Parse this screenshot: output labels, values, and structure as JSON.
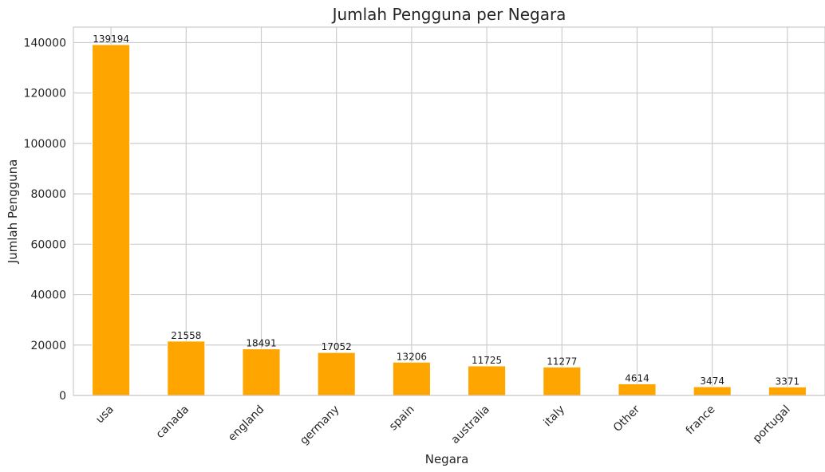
{
  "chart_data": {
    "type": "bar",
    "title": "Jumlah Pengguna per Negara",
    "xlabel": "Negara",
    "ylabel": "Jumlah Pengguna",
    "categories": [
      "usa",
      "canada",
      "england",
      "germany",
      "spain",
      "australia",
      "italy",
      "Other",
      "france",
      "portugal"
    ],
    "values": [
      139194,
      21558,
      18491,
      17052,
      13206,
      11725,
      11277,
      4614,
      3474,
      3371
    ],
    "data_labels": [
      "139194",
      "21558",
      "18491",
      "17052",
      "13206",
      "11725",
      "11277",
      "4614",
      "3474",
      "3371"
    ],
    "ylim": [
      0,
      146153
    ],
    "yticks": [
      0,
      20000,
      40000,
      60000,
      80000,
      100000,
      120000,
      140000
    ],
    "ytick_labels": [
      "0",
      "20000",
      "40000",
      "60000",
      "80000",
      "100000",
      "120000",
      "140000"
    ],
    "grid": true,
    "bar_color": "#ffa500",
    "grid_color": "#cccccc",
    "x_tick_rotation": 45
  }
}
